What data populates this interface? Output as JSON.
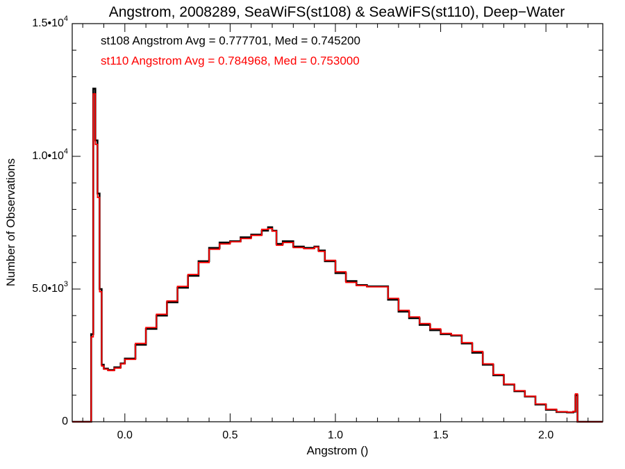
{
  "chart_data": {
    "type": "line",
    "title": "Angstrom, 2008289, SeaWiFS(st108) & SeaWiFS(st110), Deep−Water",
    "xlabel": "Angstrom ()",
    "ylabel": "Number of Observations",
    "xlim": [
      -0.25,
      2.27
    ],
    "ylim": [
      0,
      15000
    ],
    "x_ticks": [
      {
        "value": 0.0,
        "label": "0.0"
      },
      {
        "value": 0.5,
        "label": "0.5"
      },
      {
        "value": 1.0,
        "label": "1.0"
      },
      {
        "value": 1.5,
        "label": "1.5"
      },
      {
        "value": 2.0,
        "label": "2.0"
      }
    ],
    "y_ticks": [
      {
        "value": 0,
        "mant": "0",
        "exp": ""
      },
      {
        "value": 5000,
        "mant": "5.0•10",
        "exp": "3"
      },
      {
        "value": 10000,
        "mant": "1.0•10",
        "exp": "4"
      },
      {
        "value": 15000,
        "mant": "1.5•10",
        "exp": "4"
      }
    ],
    "grid": false,
    "annotations": [
      {
        "text": "st108 Angstrom Avg = 0.777701, Med = 0.745200",
        "color": "#000000"
      },
      {
        "text": "st110 Angstrom Avg = 0.784968, Med = 0.753000",
        "color": "#ff0000"
      }
    ],
    "series": [
      {
        "color": "#000000",
        "x": [
          -0.25,
          -0.16,
          -0.15,
          -0.14,
          -0.13,
          -0.12,
          -0.11,
          -0.1,
          -0.08,
          -0.05,
          -0.02,
          0.0,
          0.05,
          0.1,
          0.15,
          0.2,
          0.25,
          0.3,
          0.35,
          0.4,
          0.45,
          0.5,
          0.55,
          0.6,
          0.65,
          0.68,
          0.7,
          0.72,
          0.75,
          0.8,
          0.85,
          0.9,
          0.92,
          0.95,
          1.0,
          1.05,
          1.1,
          1.15,
          1.2,
          1.25,
          1.3,
          1.35,
          1.4,
          1.45,
          1.5,
          1.55,
          1.6,
          1.65,
          1.7,
          1.75,
          1.8,
          1.85,
          1.9,
          1.95,
          2.0,
          2.05,
          2.1,
          2.13,
          2.14,
          2.15,
          2.2,
          2.27
        ],
        "y": [
          0,
          3300,
          12550,
          10600,
          8600,
          5000,
          2150,
          2000,
          1950,
          2050,
          2200,
          2380,
          2900,
          3500,
          4000,
          4500,
          5050,
          5500,
          6050,
          6550,
          6750,
          6800,
          6950,
          7050,
          7200,
          7330,
          7200,
          6700,
          6800,
          6600,
          6550,
          6600,
          6450,
          6050,
          5600,
          5300,
          5150,
          5100,
          5100,
          4600,
          4150,
          3900,
          3650,
          3450,
          3300,
          3250,
          2950,
          2600,
          2150,
          1750,
          1400,
          1150,
          950,
          650,
          450,
          370,
          350,
          380,
          1000,
          0,
          0,
          0
        ]
      },
      {
        "color": "#ff0000",
        "x": [
          -0.25,
          -0.16,
          -0.15,
          -0.14,
          -0.13,
          -0.12,
          -0.11,
          -0.1,
          -0.08,
          -0.05,
          -0.02,
          0.0,
          0.05,
          0.1,
          0.15,
          0.2,
          0.25,
          0.3,
          0.35,
          0.4,
          0.45,
          0.5,
          0.55,
          0.6,
          0.65,
          0.68,
          0.7,
          0.72,
          0.75,
          0.8,
          0.85,
          0.9,
          0.92,
          0.95,
          1.0,
          1.05,
          1.1,
          1.15,
          1.2,
          1.25,
          1.3,
          1.35,
          1.4,
          1.45,
          1.5,
          1.55,
          1.6,
          1.65,
          1.7,
          1.75,
          1.8,
          1.85,
          1.9,
          1.95,
          2.0,
          2.05,
          2.1,
          2.13,
          2.14,
          2.15,
          2.2,
          2.27
        ],
        "y": [
          0,
          3200,
          12350,
          10450,
          8450,
          4900,
          2100,
          1980,
          1930,
          2020,
          2180,
          2350,
          2950,
          3550,
          4050,
          4550,
          5100,
          5550,
          6000,
          6500,
          6700,
          6780,
          6900,
          7020,
          7250,
          7280,
          7180,
          6650,
          6750,
          6560,
          6520,
          6580,
          6420,
          6080,
          5650,
          5250,
          5130,
          5080,
          5080,
          4650,
          4200,
          3950,
          3700,
          3500,
          3330,
          3270,
          2980,
          2650,
          2180,
          1780,
          1420,
          1170,
          960,
          670,
          470,
          380,
          360,
          390,
          1050,
          0,
          0,
          0
        ]
      }
    ]
  }
}
